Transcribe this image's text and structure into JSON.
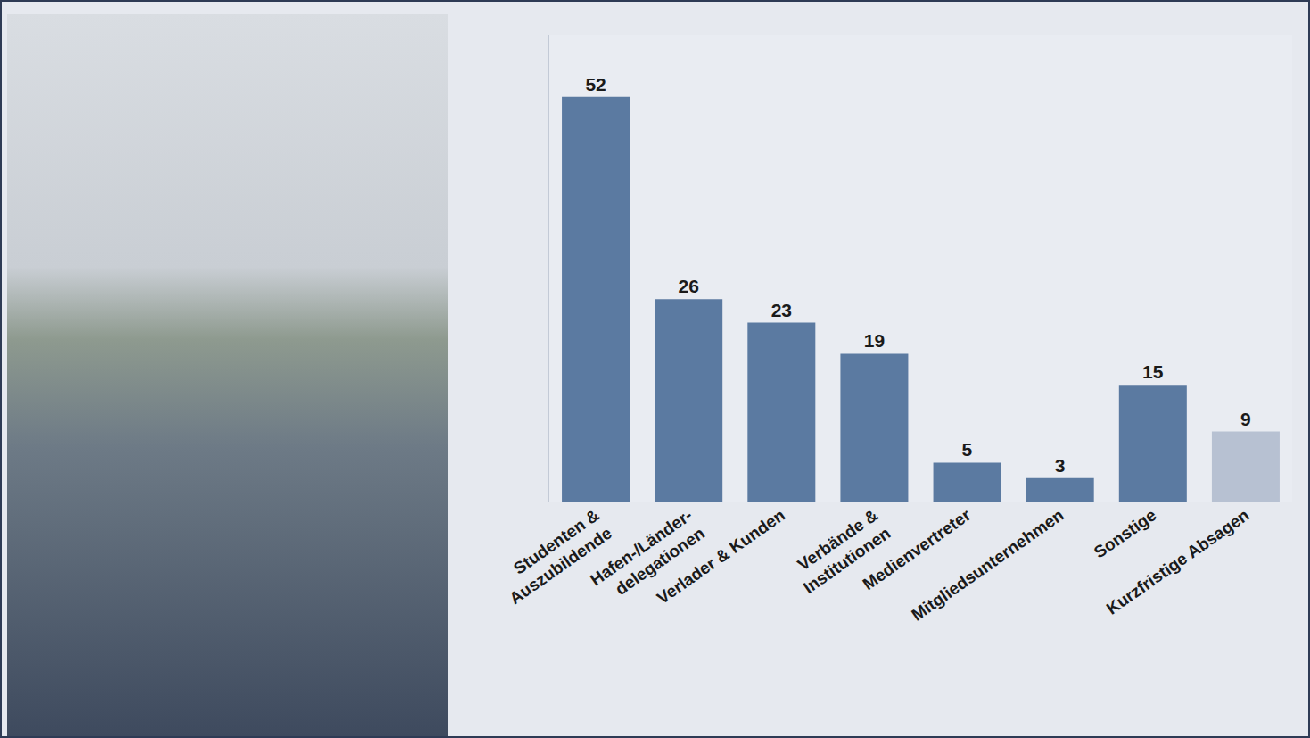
{
  "chart_data": {
    "type": "bar",
    "categories": [
      "Studenten &\nAuszubildende",
      "Hafen-/Länder-\ndelegationen",
      "Verlader & Kunden",
      "Verbände &\nInstitutionen",
      "Medienvertreter",
      "Mitgliedsunternehmen",
      "Sonstige",
      "Kurzfristige Absagen"
    ],
    "values": [
      52,
      26,
      23,
      19,
      5,
      3,
      15,
      9
    ],
    "colors": [
      "#5b7aa1",
      "#5b7aa1",
      "#5b7aa1",
      "#5b7aa1",
      "#5b7aa1",
      "#5b7aa1",
      "#5b7aa1",
      "#b7c1d2"
    ],
    "ylim": [
      0,
      60
    ],
    "data_labels": true,
    "tick_labels": "x",
    "grid": false
  }
}
